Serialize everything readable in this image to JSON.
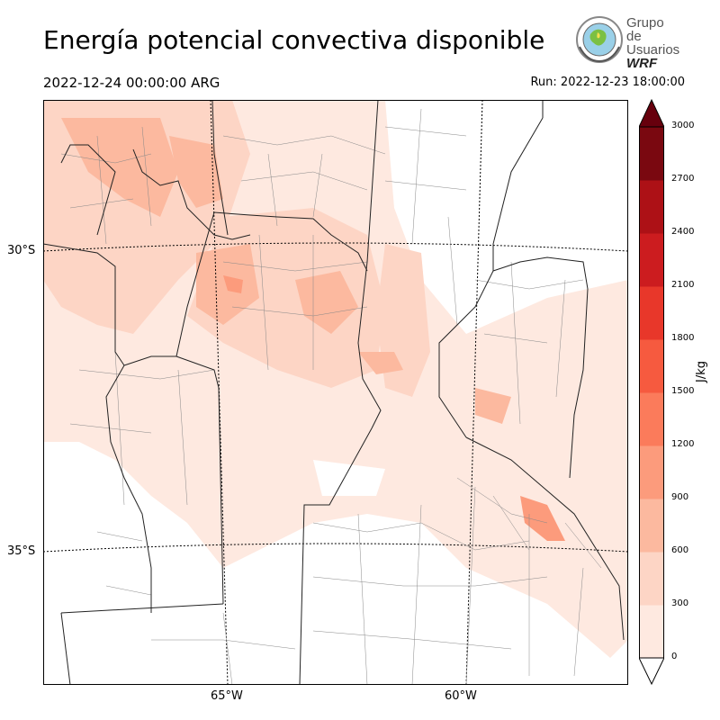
{
  "header": {
    "title": "Energía potencial convectiva disponible",
    "valid_time": "2022-12-24 00:00:00 ARG",
    "run_time": "Run: 2022-12-23 18:00:00"
  },
  "logo": {
    "line1": "Grupo de",
    "line2": "Usuarios",
    "line3": "WRF"
  },
  "map": {
    "lat_labels": [
      "30°S",
      "35°S"
    ],
    "lon_labels": [
      "65°W",
      "60°W"
    ]
  },
  "colorbar": {
    "unit": "J/kg",
    "ticks": [
      "0",
      "300",
      "600",
      "900",
      "1200",
      "1500",
      "1800",
      "2100",
      "2400",
      "2700",
      "3000"
    ],
    "colors": [
      "#fee9e0",
      "#fdd5c5",
      "#fcb99f",
      "#fc9b7c",
      "#fb7b5b",
      "#f65a3f",
      "#e8372a",
      "#cc1c1f",
      "#ad1116",
      "#7a0810"
    ],
    "extend_color": "#67000d"
  }
}
